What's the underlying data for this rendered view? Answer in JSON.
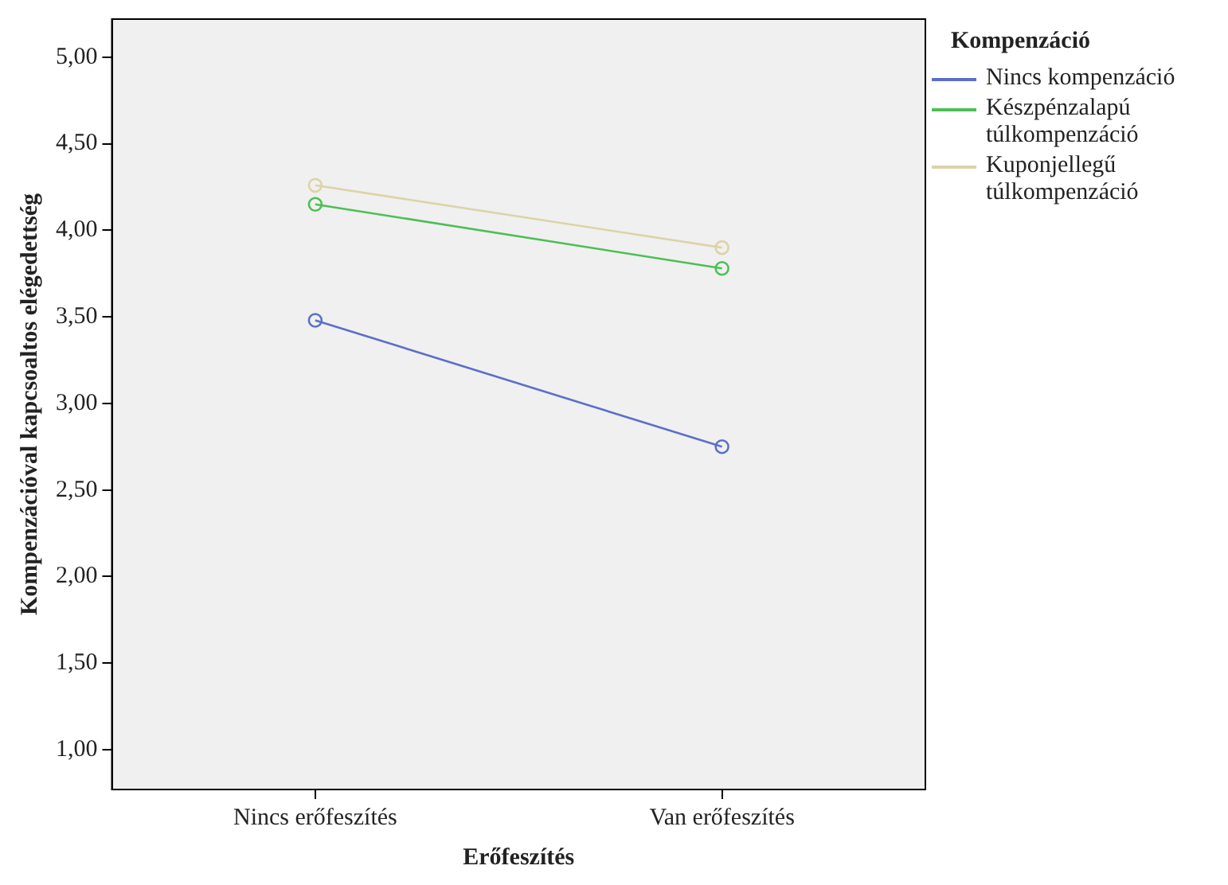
{
  "chart_data": {
    "type": "line",
    "xlabel": "Erőfeszítés",
    "ylabel": "Kompenzációval kapcsoaltos elégedettség",
    "legend_title": "Kompenzáció",
    "categories": [
      "Nincs erőfeszítés",
      "Van erőfeszítés"
    ],
    "series": [
      {
        "name": "Nincs kompenzáció",
        "color": "#5b6fc9",
        "values": [
          3.48,
          2.75
        ]
      },
      {
        "name": "Készpénzalapú túlkompenzáció",
        "color": "#4dbf55",
        "values": [
          4.15,
          3.78
        ]
      },
      {
        "name": "Kuponjellegű túlkompenzáció",
        "color": "#ddd3a8",
        "values": [
          4.26,
          3.9
        ]
      }
    ],
    "ylim": [
      0.77,
      5.22
    ],
    "yticks": [
      {
        "value": 1,
        "label": "1,00"
      },
      {
        "value": 1.5,
        "label": "1,50"
      },
      {
        "value": 2,
        "label": "2,00"
      },
      {
        "value": 2.5,
        "label": "2,50"
      },
      {
        "value": 3,
        "label": "3,00"
      },
      {
        "value": 3.5,
        "label": "3,50"
      },
      {
        "value": 4,
        "label": "4,00"
      },
      {
        "value": 4.5,
        "label": "4,50"
      },
      {
        "value": 5,
        "label": "5,00"
      }
    ],
    "grid": false,
    "legend": "right",
    "marker": "circle",
    "line_style": "solid"
  }
}
